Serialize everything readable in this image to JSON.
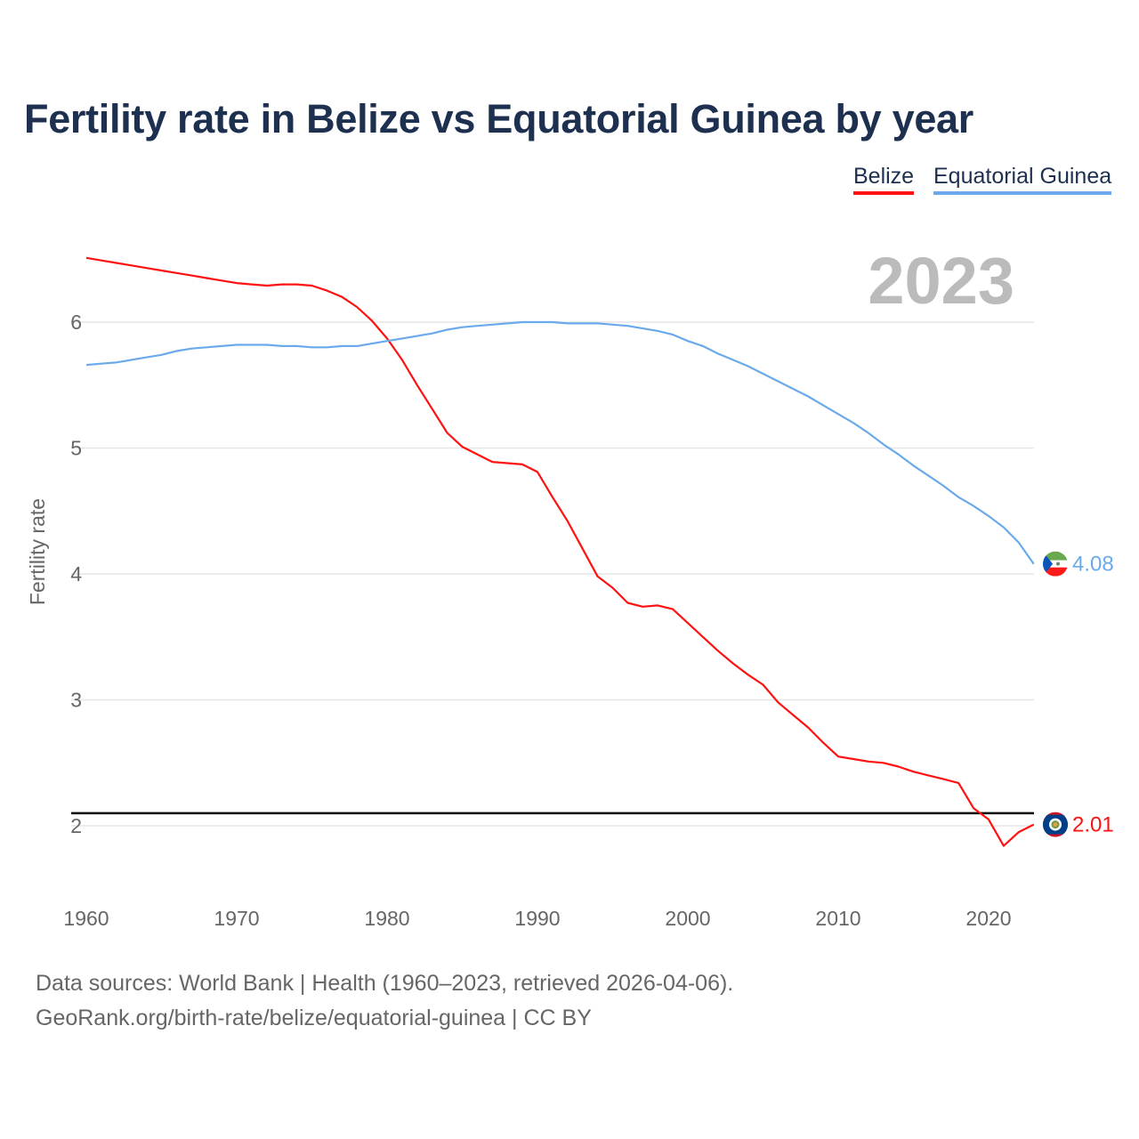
{
  "chart_data": {
    "type": "line",
    "title": "Fertility rate in Belize vs Equatorial Guinea by year",
    "ylabel": "Fertility rate",
    "xlabel": "",
    "year_label": "2023",
    "xlim": [
      1960,
      2023
    ],
    "ylim": [
      1.5,
      6.7
    ],
    "x_ticks": [
      "1960",
      "1970",
      "1980",
      "1990",
      "2000",
      "2010",
      "2020"
    ],
    "y_ticks": [
      "2",
      "3",
      "4",
      "5",
      "6"
    ],
    "grid": true,
    "legend_position": "top-right",
    "reference_line": 2.1,
    "x_start": 1960,
    "series": [
      {
        "name": "Belize",
        "color": "#ff1111",
        "end_label": "2.01",
        "values": [
          6.51,
          6.49,
          6.47,
          6.45,
          6.43,
          6.41,
          6.39,
          6.37,
          6.35,
          6.33,
          6.31,
          6.3,
          6.29,
          6.3,
          6.3,
          6.29,
          6.25,
          6.2,
          6.12,
          6.01,
          5.87,
          5.7,
          5.5,
          5.31,
          5.12,
          5.01,
          4.95,
          4.89,
          4.88,
          4.87,
          4.81,
          4.61,
          4.42,
          4.2,
          3.98,
          3.89,
          3.77,
          3.74,
          3.75,
          3.72,
          3.61,
          3.5,
          3.39,
          3.29,
          3.2,
          3.12,
          2.98,
          2.88,
          2.78,
          2.66,
          2.55,
          2.53,
          2.51,
          2.5,
          2.47,
          2.43,
          2.4,
          2.37,
          2.34,
          2.14,
          2.05,
          1.84,
          1.95,
          2.01
        ]
      },
      {
        "name": "Equatorial Guinea",
        "color": "#6aaaea",
        "end_label": "4.08",
        "values": [
          5.66,
          5.67,
          5.68,
          5.7,
          5.72,
          5.74,
          5.77,
          5.79,
          5.8,
          5.81,
          5.82,
          5.82,
          5.82,
          5.81,
          5.81,
          5.8,
          5.8,
          5.81,
          5.81,
          5.83,
          5.85,
          5.87,
          5.89,
          5.91,
          5.94,
          5.96,
          5.97,
          5.98,
          5.99,
          6.0,
          6.0,
          6.0,
          5.99,
          5.99,
          5.99,
          5.98,
          5.97,
          5.95,
          5.93,
          5.9,
          5.85,
          5.81,
          5.75,
          5.7,
          5.65,
          5.59,
          5.53,
          5.47,
          5.41,
          5.34,
          5.27,
          5.2,
          5.12,
          5.03,
          4.95,
          4.86,
          4.78,
          4.7,
          4.61,
          4.54,
          4.46,
          4.37,
          4.25,
          4.08
        ]
      }
    ]
  },
  "footer": {
    "line1": "Data sources: World Bank | Health (1960–2023, retrieved 2026-04-06).",
    "line2": "GeoRank.org/birth-rate/belize/equatorial-guinea | CC BY"
  }
}
